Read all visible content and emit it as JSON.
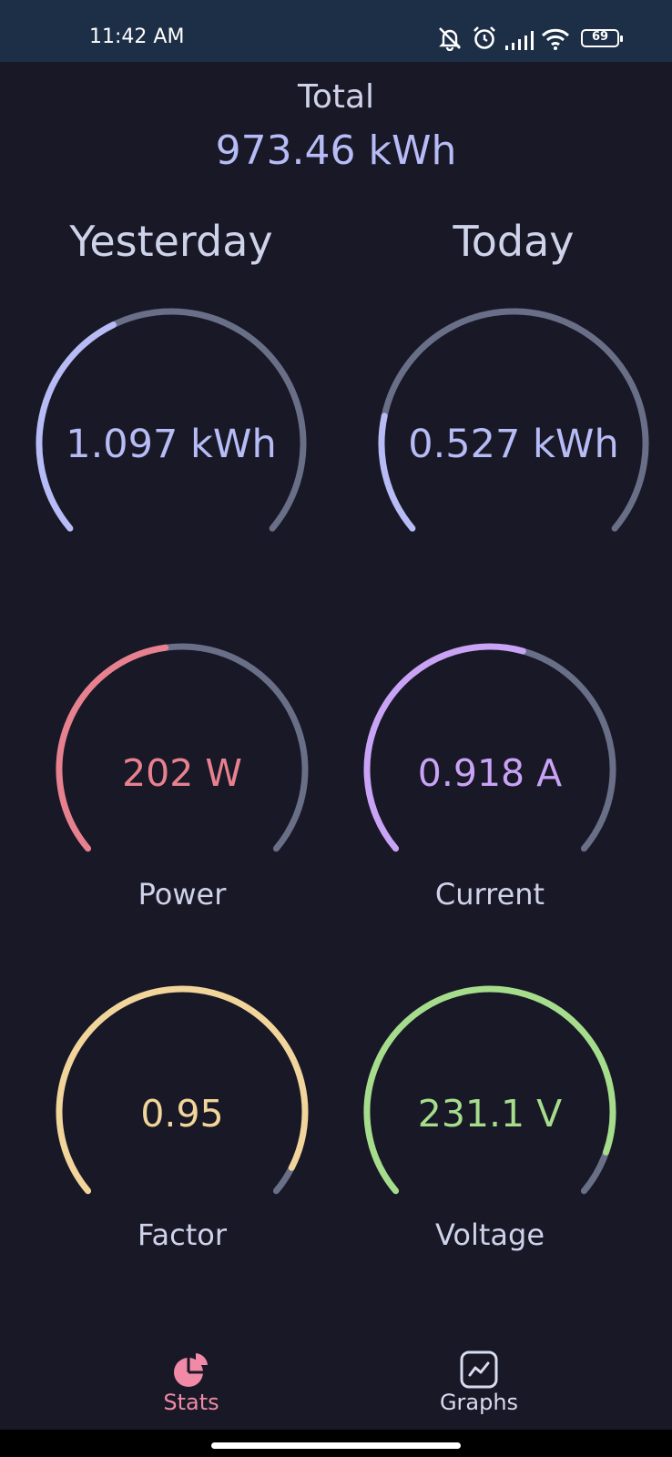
{
  "status_bar": {
    "time": "11:42 AM",
    "battery_level": "69",
    "icons": [
      "muted-bell-icon",
      "alarm-icon",
      "signal-icon",
      "wifi-icon",
      "battery-icon"
    ]
  },
  "total": {
    "label": "Total",
    "value": "973.46 kWh"
  },
  "columns": {
    "left": "Yesterday",
    "right": "Today"
  },
  "gauges": {
    "yesterday": {
      "value": "1.097 kWh",
      "fill_fraction": 0.4,
      "color": "#b7bcf6"
    },
    "today": {
      "value": "0.527 kWh",
      "fill_fraction": 0.2,
      "color": "#b7bcf6"
    },
    "power": {
      "value": "202 W",
      "caption": "Power",
      "fill_fraction": 0.47,
      "color": "#e8818f"
    },
    "current": {
      "value": "0.918 A",
      "caption": "Current",
      "fill_fraction": 0.56,
      "color": "#c9a3f5"
    },
    "factor": {
      "value": "0.95",
      "caption": "Factor",
      "fill_fraction": 0.95,
      "color": "#f2d59a"
    },
    "voltage": {
      "value": "231.1 V",
      "caption": "Voltage",
      "fill_fraction": 0.92,
      "color": "#a6dd8d"
    }
  },
  "track_color": "#6a6f88",
  "nav": {
    "items": [
      {
        "label": "Stats",
        "icon": "pie-chart-icon",
        "active": true
      },
      {
        "label": "Graphs",
        "icon": "line-graph-icon",
        "active": false
      }
    ],
    "active_color": "#f08aa6",
    "inactive_color": "#d8dcf0"
  }
}
